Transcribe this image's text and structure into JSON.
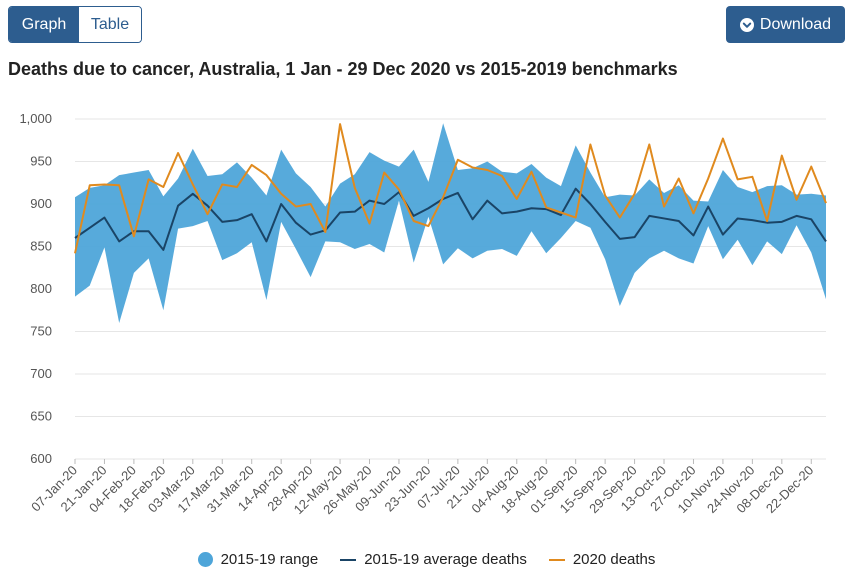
{
  "toolbar": {
    "graph_label": "Graph",
    "table_label": "Table",
    "download_label": "Download",
    "download_icon": "chevron-down-icon"
  },
  "colors": {
    "accent": "#2d5d8f",
    "range_fill": "#4ea5d9",
    "average_line": "#1a4466",
    "deaths_2020_line": "#e08a1e",
    "gridline": "#e6e6e6"
  },
  "chart_data": {
    "type": "area",
    "title": "Deaths due to cancer, Australia, 1 Jan - 29 Dec 2020 vs 2015-2019 benchmarks",
    "xlabel": "",
    "ylabel": "",
    "ylim": [
      600,
      1000
    ],
    "yticks": [
      "600",
      "650",
      "700",
      "750",
      "800",
      "850",
      "900",
      "950",
      "1,000"
    ],
    "ytick_values": [
      600,
      650,
      700,
      750,
      800,
      850,
      900,
      950,
      1000
    ],
    "x": [
      "07-Jan-20",
      "14-Jan-20",
      "21-Jan-20",
      "28-Jan-20",
      "04-Feb-20",
      "11-Feb-20",
      "18-Feb-20",
      "25-Feb-20",
      "03-Mar-20",
      "10-Mar-20",
      "17-Mar-20",
      "24-Mar-20",
      "31-Mar-20",
      "07-Apr-20",
      "14-Apr-20",
      "21-Apr-20",
      "28-Apr-20",
      "05-May-20",
      "12-May-20",
      "19-May-20",
      "26-May-20",
      "02-Jun-20",
      "09-Jun-20",
      "16-Jun-20",
      "23-Jun-20",
      "30-Jun-20",
      "07-Jul-20",
      "14-Jul-20",
      "21-Jul-20",
      "28-Jul-20",
      "04-Aug-20",
      "11-Aug-20",
      "18-Aug-20",
      "25-Aug-20",
      "01-Sep-20",
      "08-Sep-20",
      "15-Sep-20",
      "22-Sep-20",
      "29-Sep-20",
      "06-Oct-20",
      "13-Oct-20",
      "20-Oct-20",
      "27-Oct-20",
      "03-Nov-20",
      "10-Nov-20",
      "17-Nov-20",
      "24-Nov-20",
      "01-Dec-20",
      "08-Dec-20",
      "15-Dec-20",
      "22-Dec-20",
      "29-Dec-20"
    ],
    "x_tick_labels": [
      "07-Jan-20",
      "21-Jan-20",
      "04-Feb-20",
      "18-Feb-20",
      "03-Mar-20",
      "17-Mar-20",
      "31-Mar-20",
      "14-Apr-20",
      "28-Apr-20",
      "12-May-20",
      "26-May-20",
      "09-Jun-20",
      "23-Jun-20",
      "07-Jul-20",
      "21-Jul-20",
      "04-Aug-20",
      "18-Aug-20",
      "01-Sep-20",
      "15-Sep-20",
      "29-Sep-20",
      "13-Oct-20",
      "27-Oct-20",
      "10-Nov-20",
      "24-Nov-20",
      "08-Dec-20",
      "22-Dec-20"
    ],
    "series": [
      {
        "name": "2015-19 range",
        "type": "range",
        "low": [
          791,
          804,
          849,
          760,
          819,
          836,
          775,
          871,
          874,
          880,
          834,
          842,
          855,
          787,
          879,
          847,
          814,
          856,
          855,
          847,
          853,
          843,
          904,
          831,
          885,
          829,
          848,
          836,
          845,
          847,
          839,
          868,
          842,
          860,
          880,
          872,
          835,
          780,
          819,
          836,
          845,
          836,
          830,
          874,
          835,
          858,
          828,
          856,
          841,
          875,
          843,
          788
        ],
        "high": [
          908,
          919,
          922,
          934,
          937,
          940,
          909,
          930,
          965,
          933,
          935,
          949,
          931,
          910,
          964,
          936,
          920,
          897,
          924,
          935,
          961,
          951,
          944,
          964,
          926,
          995,
          940,
          942,
          950,
          938,
          936,
          947,
          931,
          921,
          969,
          937,
          908,
          911,
          910,
          929,
          913,
          922,
          904,
          903,
          940,
          920,
          914,
          921,
          922,
          911,
          912,
          910
        ]
      },
      {
        "name": "2015-19 average deaths",
        "type": "line",
        "values": [
          860,
          872,
          884,
          856,
          868,
          868,
          846,
          898,
          912,
          898,
          879,
          881,
          888,
          856,
          900,
          878,
          864,
          869,
          890,
          891,
          904,
          900,
          914,
          886,
          895,
          906,
          913,
          882,
          904,
          889,
          891,
          895,
          894,
          887,
          918,
          900,
          879,
          859,
          861,
          886,
          883,
          880,
          863,
          897,
          864,
          883,
          881,
          878,
          879,
          886,
          882,
          856
        ]
      },
      {
        "name": "2020 deaths",
        "type": "line",
        "values": [
          842,
          922,
          923,
          922,
          862,
          929,
          920,
          960,
          923,
          888,
          923,
          920,
          946,
          934,
          912,
          897,
          900,
          867,
          994,
          919,
          877,
          937,
          917,
          880,
          874,
          908,
          952,
          943,
          940,
          933,
          906,
          938,
          896,
          890,
          884,
          970,
          910,
          884,
          912,
          970,
          897,
          930,
          889,
          930,
          977,
          929,
          932,
          880,
          957,
          905,
          944,
          901
        ]
      }
    ]
  },
  "legend": {
    "range_label": "2015-19 range",
    "average_label": "2015-19 average deaths",
    "deaths_2020_label": "2020 deaths"
  }
}
